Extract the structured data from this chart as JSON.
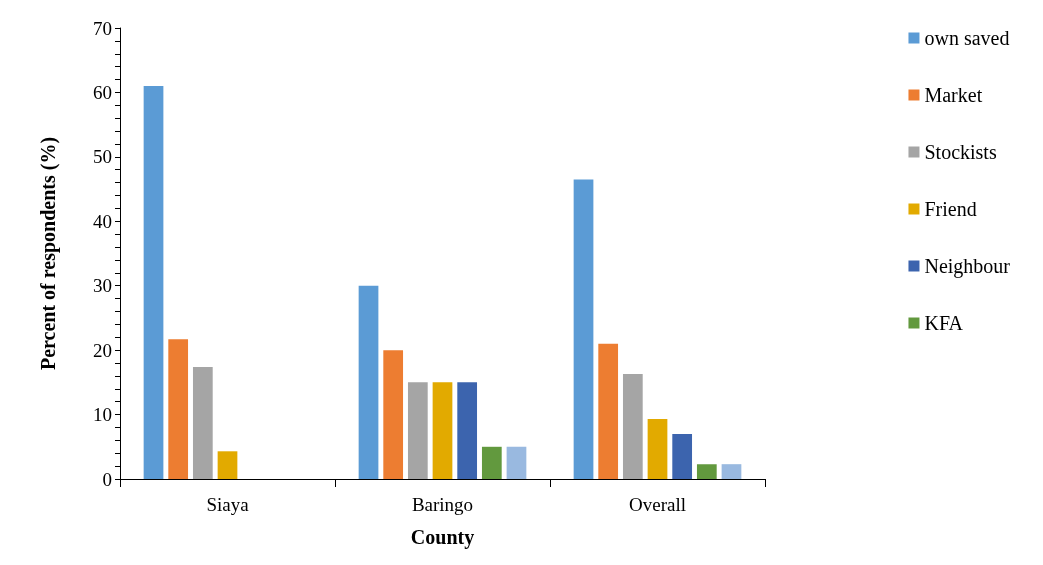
{
  "chart_data": {
    "type": "bar",
    "xlabel": "County",
    "ylabel": "Percent of respondents (%)",
    "categories": [
      "Siaya",
      "Baringo",
      "Overall"
    ],
    "series": [
      {
        "name": "own saved",
        "color": "#5b9bd5",
        "values": [
          61,
          30,
          46.5
        ]
      },
      {
        "name": "Market",
        "color": "#ed7d31",
        "values": [
          21.7,
          20,
          21
        ]
      },
      {
        "name": "Stockists",
        "color": "#a5a5a5",
        "values": [
          17.4,
          15,
          16.3
        ]
      },
      {
        "name": "Friend",
        "color": "#e2aa00",
        "values": [
          4.3,
          15,
          9.3
        ]
      },
      {
        "name": "Neighbour",
        "color": "#3c64ae",
        "values": [
          null,
          15,
          7
        ]
      },
      {
        "name": "KFA",
        "color": "#62993e",
        "values": [
          null,
          5,
          2.3
        ]
      },
      {
        "color": "#99b9e0",
        "values": [
          null,
          5,
          2.3
        ]
      }
    ],
    "ylim": [
      0,
      70
    ],
    "yticks": [
      0,
      {
        "value": 2,
        "label": null
      },
      {
        "value": 4,
        "label": null
      },
      {
        "value": 6,
        "label": null
      },
      {
        "value": 8,
        "label": null
      },
      10,
      {
        "value": 12,
        "label": null
      },
      {
        "value": 14,
        "label": null
      },
      {
        "value": 16,
        "label": null
      },
      {
        "value": 18,
        "label": null
      },
      20,
      {
        "value": 22,
        "label": null
      },
      {
        "value": 24,
        "label": null
      },
      {
        "value": 26,
        "label": null
      },
      {
        "value": 28,
        "label": null
      },
      30,
      {
        "value": 32,
        "label": null
      },
      {
        "value": 34,
        "label": null
      },
      {
        "value": 36,
        "label": null
      },
      {
        "value": 38,
        "label": null
      },
      40,
      {
        "value": 42,
        "label": null
      },
      {
        "value": 44,
        "label": null
      },
      {
        "value": 46,
        "label": null
      },
      {
        "value": 48,
        "label": null
      },
      50,
      {
        "value": 52,
        "label": null
      },
      {
        "value": 54,
        "label": null
      },
      {
        "value": 56,
        "label": null
      },
      {
        "value": 58,
        "label": null
      },
      60,
      {
        "value": 62,
        "label": null
      },
      {
        "value": 64,
        "label": null
      },
      {
        "value": 66,
        "label": null
      },
      {
        "value": 68,
        "label": null
      },
      70
    ],
    "grid": false,
    "legend": "right"
  }
}
